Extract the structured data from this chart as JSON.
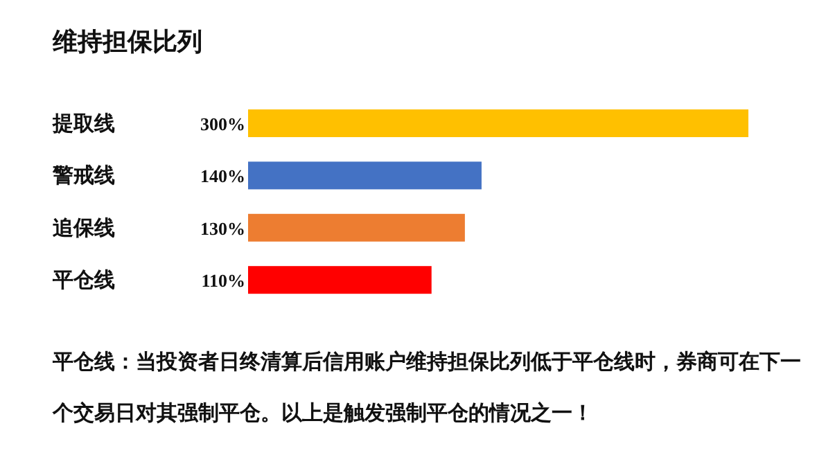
{
  "chart_data": {
    "type": "bar",
    "orientation": "horizontal",
    "title": "维持担保比列",
    "categories": [
      "提取线",
      "警戒线",
      "追保线",
      "平仓线"
    ],
    "values": [
      300,
      140,
      130,
      110
    ],
    "value_labels": [
      "300%",
      "140%",
      "130%",
      "110%"
    ],
    "colors": [
      "#ffc000",
      "#4472c4",
      "#ed7d31",
      "#ff0000"
    ],
    "annotations": [
      "平仓线：当投资者日终清算后信用账户维持担保比列低于平仓线时，券商可在下一个交易日对其强制平仓。以上是触发强制平仓的情况之一！"
    ]
  }
}
